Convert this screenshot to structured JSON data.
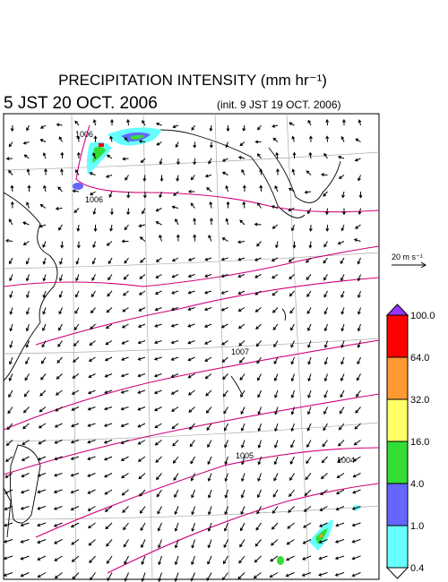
{
  "header": {
    "title": "PRECIPITATION INTENSITY (mm hr⁻¹)",
    "valid_time": "5 JST 20 OCT. 2006",
    "init_time": "(init. 9 JST 19 OCT. 2006)"
  },
  "reference_vector": "20 m s⁻¹",
  "isobar_labels": [
    "1006",
    "1006",
    "1007",
    "1005",
    "1004"
  ],
  "colorbar": {
    "labels": [
      "100.0",
      "64.0",
      "32.0",
      "16.0",
      "4.0",
      "1.0",
      "0.4"
    ],
    "colors": [
      "#ff0000",
      "#ff9933",
      "#ffff66",
      "#33dd33",
      "#6666ff",
      "#66ffff"
    ],
    "over_color": "#9933ff",
    "under_color": "#ffffff"
  }
}
